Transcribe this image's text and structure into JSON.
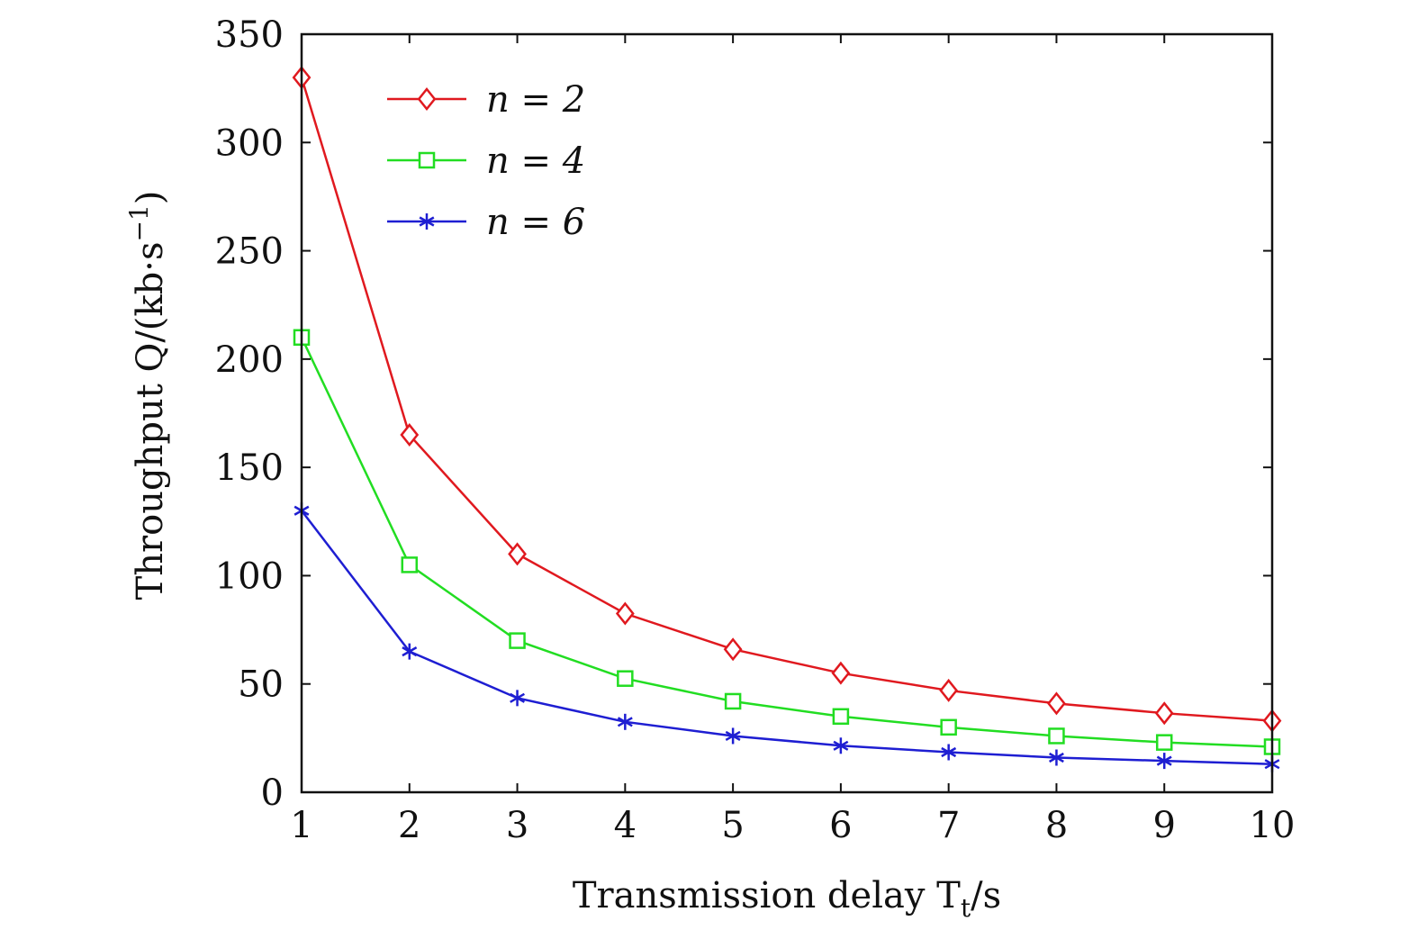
{
  "chart_data": {
    "type": "line",
    "title": "",
    "xlabel": "Transmission delay T",
    "xlabel_subscript": "t",
    "xlabel_suffix": "/s",
    "ylabel": "Throughput Q/(kb·s",
    "ylabel_superscript": "−1",
    "ylabel_suffix": ")",
    "xlim": [
      1,
      10
    ],
    "ylim": [
      0,
      350
    ],
    "xticks": [
      1,
      2,
      3,
      4,
      5,
      6,
      7,
      8,
      9,
      10
    ],
    "yticks": [
      0,
      50,
      100,
      150,
      200,
      250,
      300,
      350
    ],
    "grid": false,
    "legend_position": "top-left",
    "x": [
      1,
      2,
      3,
      4,
      5,
      6,
      7,
      8,
      9,
      10
    ],
    "series": [
      {
        "name": "n = 2",
        "color": "#e0191f",
        "marker": "diamond",
        "values": [
          330,
          165,
          110,
          82.5,
          66,
          55,
          47,
          41,
          36.5,
          33
        ]
      },
      {
        "name": "n = 4",
        "color": "#22dd22",
        "marker": "square",
        "values": [
          210,
          105,
          70,
          52.5,
          42,
          35,
          30,
          26,
          23,
          21
        ]
      },
      {
        "name": "n = 6",
        "color": "#1e1ed2",
        "marker": "asterisk",
        "values": [
          130,
          65,
          43.5,
          32.5,
          26,
          21.5,
          18.5,
          16,
          14.5,
          13
        ]
      }
    ]
  }
}
